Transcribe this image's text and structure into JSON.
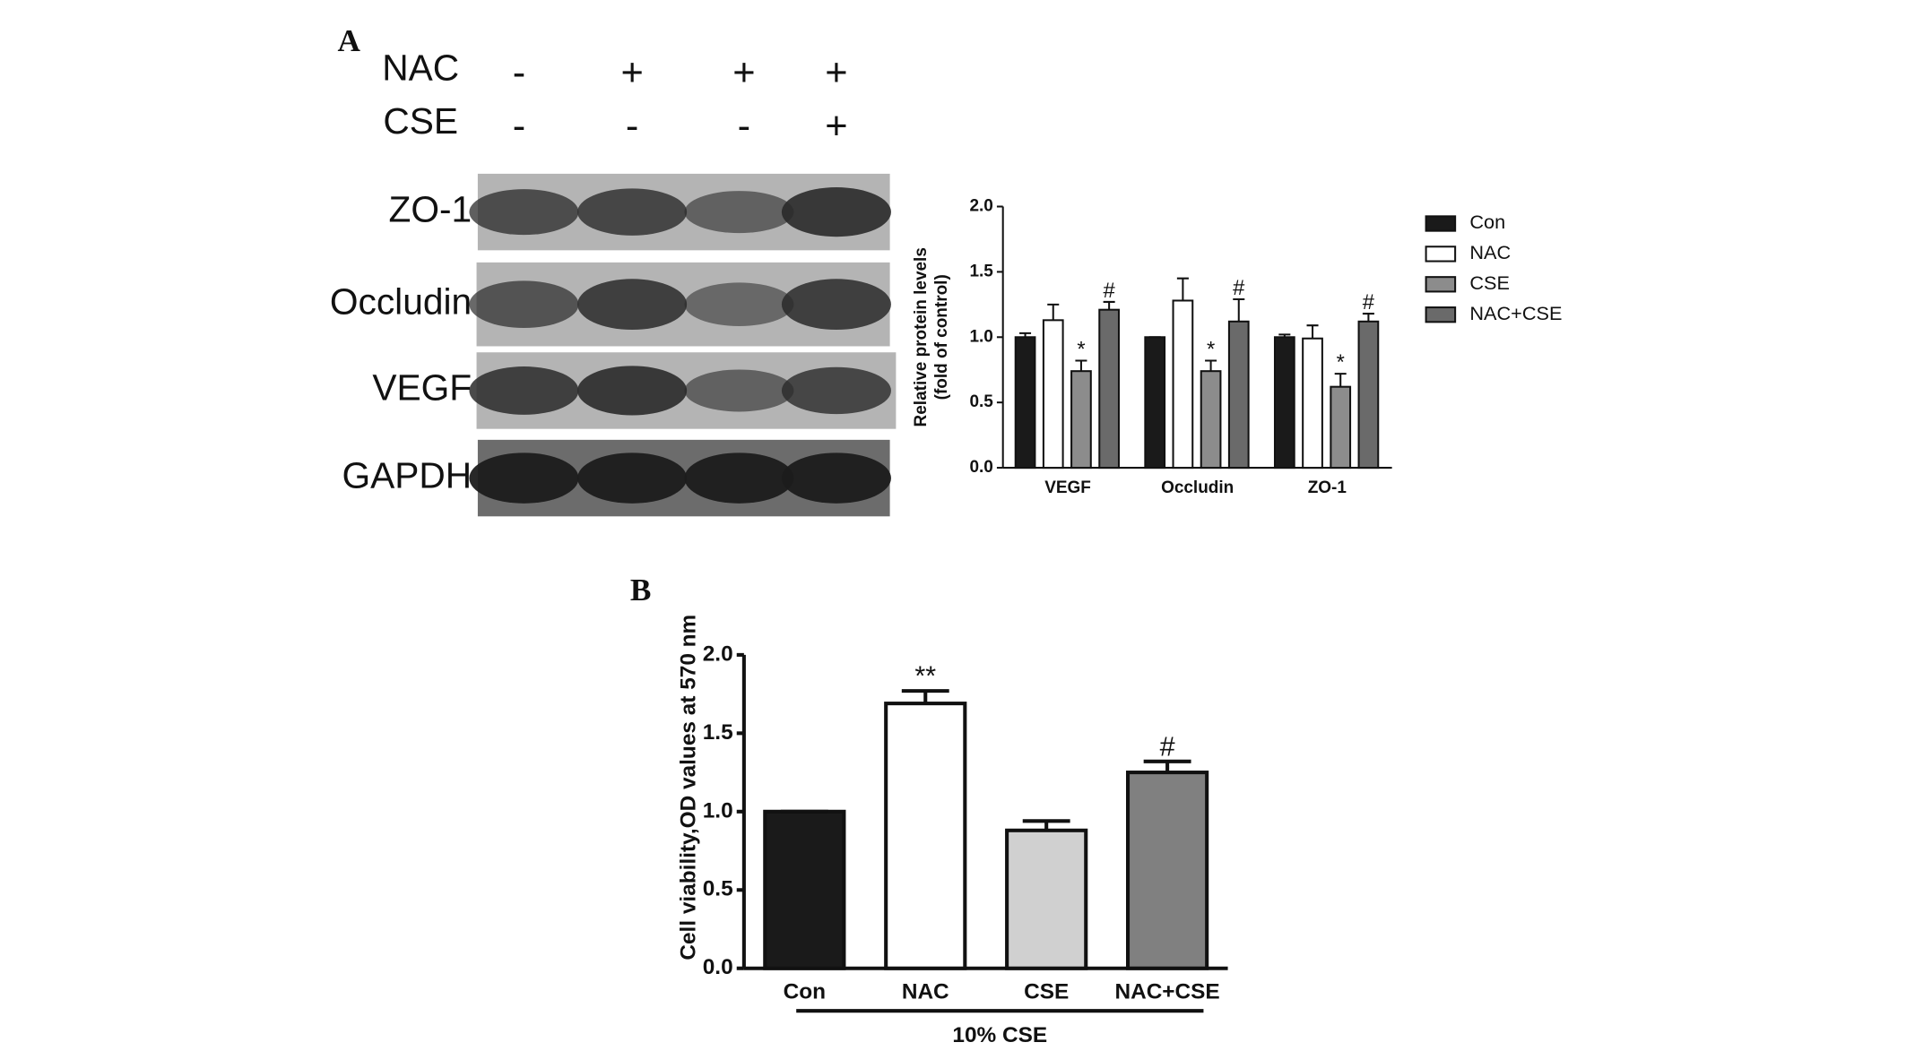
{
  "panel_labels": [
    "A",
    "B"
  ],
  "blot": {
    "treatments": [
      {
        "name": "NAC",
        "signs": [
          "-",
          "+",
          "+",
          "+"
        ]
      },
      {
        "name": "CSE",
        "signs": [
          "-",
          "-",
          "-",
          "+"
        ]
      }
    ],
    "bands": [
      "ZO-1",
      "Occludin",
      "VEGF",
      "GAPDH"
    ]
  },
  "chart_data": [
    {
      "type": "bar",
      "ylabel": [
        "Relative protein levels",
        "(fold of control)"
      ],
      "categories": [
        "VEGF",
        "Occludin",
        "ZO-1"
      ],
      "series": [
        {
          "name": "Con",
          "color": "#1a1a1a",
          "values": [
            1.0,
            1.0,
            1.0
          ],
          "errors": [
            0.03,
            0.0,
            0.02
          ]
        },
        {
          "name": "NAC",
          "color": "#ffffff",
          "values": [
            1.13,
            1.28,
            0.99
          ],
          "errors": [
            0.12,
            0.17,
            0.1
          ]
        },
        {
          "name": "CSE",
          "color": "#8c8c8c",
          "values": [
            0.74,
            0.74,
            0.62
          ],
          "errors": [
            0.08,
            0.08,
            0.1
          ],
          "marks": [
            "*",
            "*",
            "*"
          ]
        },
        {
          "name": "NAC+CSE",
          "color": "#6a6a6a",
          "values": [
            1.21,
            1.12,
            1.12
          ],
          "errors": [
            0.06,
            0.17,
            0.06
          ],
          "marks": [
            "#",
            "#",
            "#"
          ]
        }
      ],
      "ylim": [
        0,
        2
      ],
      "yticks": [
        {
          "value": 0,
          "label": "0.0"
        },
        {
          "value": 0.5,
          "label": "0.5"
        },
        {
          "value": 1,
          "label": "1.0"
        },
        {
          "value": 1.5,
          "label": "1.5"
        },
        {
          "value": 2,
          "label": "2.0"
        }
      ],
      "legend": "right"
    },
    {
      "type": "bar",
      "ylabel": "Cell viability,OD values at 570 nm",
      "categories": [
        "Con",
        "NAC",
        "CSE",
        "NAC+CSE"
      ],
      "group_label": "10% CSE",
      "values": [
        1.0,
        1.69,
        0.88,
        1.25
      ],
      "errors": [
        0.0,
        0.08,
        0.06,
        0.07
      ],
      "marks": [
        null,
        "**",
        null,
        "#"
      ],
      "colors": [
        "#1a1a1a",
        "#ffffff",
        "#d0d0d0",
        "#808080"
      ],
      "ylim": [
        0,
        2
      ],
      "yticks": [
        {
          "value": 0,
          "label": "0.0"
        },
        {
          "value": 0.5,
          "label": "0.5"
        },
        {
          "value": 1,
          "label": "1.0"
        },
        {
          "value": 1.5,
          "label": "1.5"
        },
        {
          "value": 2,
          "label": "2.0"
        }
      ]
    }
  ]
}
